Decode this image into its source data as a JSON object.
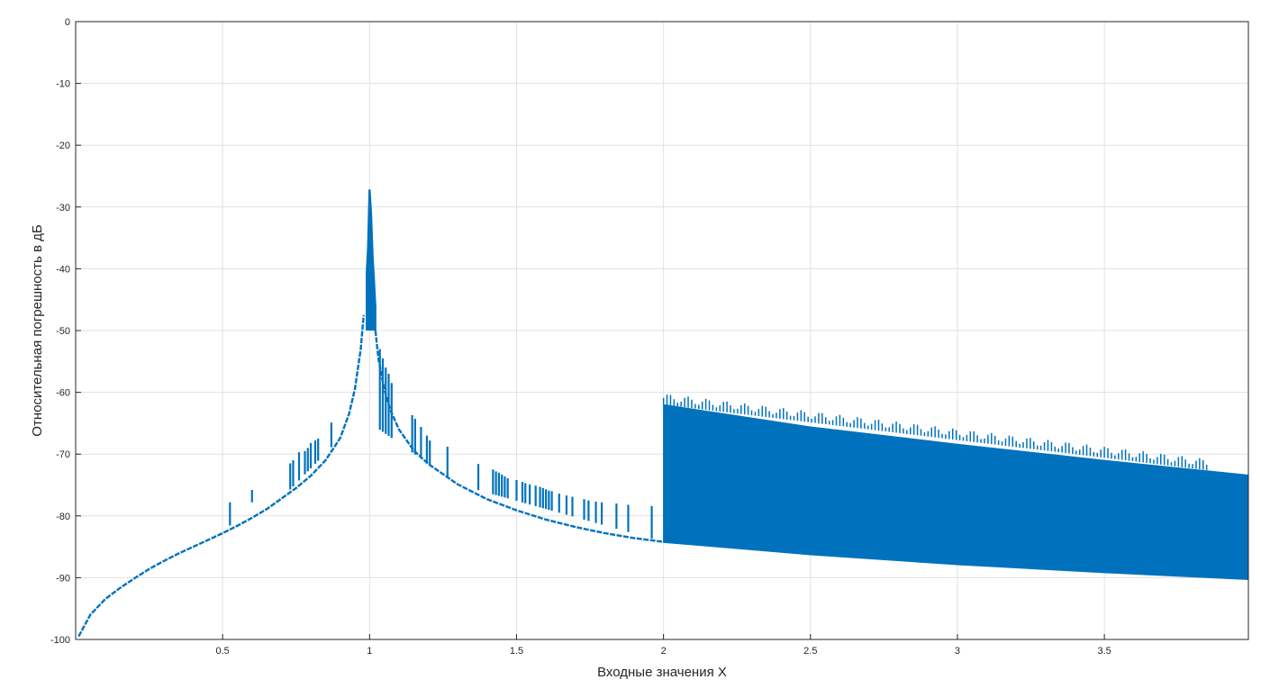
{
  "chart_data": {
    "type": "line",
    "title": "",
    "xlabel": "Входные значения X",
    "ylabel": "Относительная погрешность в дБ",
    "xlim": [
      0,
      3.99
    ],
    "ylim": [
      -100,
      0
    ],
    "grid": true,
    "x_ticks": [
      0.5,
      1,
      1.5,
      2,
      2.5,
      3,
      3.5
    ],
    "x_tick_labels": [
      "0.5",
      "1",
      "1.5",
      "2",
      "2.5",
      "3",
      "3.5"
    ],
    "y_ticks": [
      0,
      -10,
      -20,
      -30,
      -40,
      -50,
      -60,
      -70,
      -80,
      -90,
      -100
    ],
    "y_tick_labels": [
      "0",
      "-10",
      "-20",
      "-30",
      "-40",
      "-50",
      "-60",
      "-70",
      "-80",
      "-90",
      "-100"
    ],
    "series_color": "#0072bd",
    "series": [
      {
        "kind": "baseline",
        "x": [
          0.01,
          0.05,
          0.1,
          0.15,
          0.2,
          0.25,
          0.3,
          0.35,
          0.4,
          0.45,
          0.5,
          0.55,
          0.6,
          0.65,
          0.7,
          0.75,
          0.8,
          0.85,
          0.9,
          0.93,
          0.95,
          0.97,
          0.98
        ],
        "y": [
          -99.5,
          -96.0,
          -93.5,
          -91.7,
          -90.1,
          -88.6,
          -87.3,
          -86.1,
          -85.0,
          -83.9,
          -82.8,
          -81.6,
          -80.3,
          -78.9,
          -77.2,
          -75.5,
          -73.5,
          -71.0,
          -67.4,
          -63.5,
          -59.5,
          -53.0,
          -47.5
        ]
      },
      {
        "kind": "baseline",
        "x": [
          1.02,
          1.03,
          1.05,
          1.07,
          1.1,
          1.15,
          1.2,
          1.3,
          1.4,
          1.5,
          1.6,
          1.7,
          1.8,
          1.9,
          2.0
        ],
        "y": [
          -50.0,
          -54.5,
          -59.5,
          -62.8,
          -66.0,
          -69.4,
          -71.6,
          -74.9,
          -77.3,
          -79.1,
          -80.6,
          -81.8,
          -82.8,
          -83.6,
          -84.2
        ]
      },
      {
        "kind": "peak",
        "x": [
          0.99,
          0.995,
          1.0,
          1.005,
          1.01,
          1.015,
          1.02
        ],
        "y": [
          -41.0,
          -36.5,
          -27.3,
          -31.0,
          -38.0,
          -42.0,
          -46.5
        ]
      },
      {
        "kind": "spikes",
        "x": [
          0.525,
          0.6,
          0.73,
          0.74,
          0.76,
          0.78,
          0.79,
          0.8,
          0.815,
          0.825,
          0.87,
          1.035,
          1.045,
          1.055,
          1.065,
          1.075,
          1.145,
          1.155,
          1.175,
          1.195,
          1.205,
          1.265,
          1.37,
          1.42,
          1.43,
          1.44,
          1.45,
          1.46,
          1.47,
          1.5,
          1.52,
          1.53,
          1.545,
          1.565,
          1.58,
          1.59,
          1.6,
          1.61,
          1.62,
          1.645,
          1.67,
          1.69,
          1.73,
          1.745,
          1.77,
          1.79,
          1.84,
          1.88,
          1.96
        ],
        "y": [
          -77.8,
          -75.8,
          -71.5,
          -71.0,
          -69.7,
          -69.5,
          -69.0,
          -68.2,
          -67.8,
          -67.5,
          -64.9,
          -53.0,
          -54.5,
          -56.0,
          -57.0,
          -58.5,
          -63.7,
          -64.3,
          -65.6,
          -67.0,
          -67.8,
          -68.8,
          -71.6,
          -72.5,
          -72.8,
          -73.0,
          -73.3,
          -73.6,
          -73.9,
          -74.2,
          -74.5,
          -74.7,
          -74.9,
          -75.1,
          -75.3,
          -75.5,
          -75.7,
          -75.9,
          -76.0,
          -76.4,
          -76.7,
          -76.9,
          -77.3,
          -77.5,
          -77.7,
          -77.8,
          -78.0,
          -78.2,
          -78.4
        ]
      },
      {
        "kind": "band",
        "x": [
          2.0,
          2.5,
          3.0,
          3.5,
          3.99
        ],
        "y_upper": [
          -62.0,
          -65.6,
          -68.4,
          -71.0,
          -73.4
        ],
        "y_lower": [
          -84.3,
          -86.3,
          -87.9,
          -89.2,
          -90.3
        ]
      }
    ]
  }
}
